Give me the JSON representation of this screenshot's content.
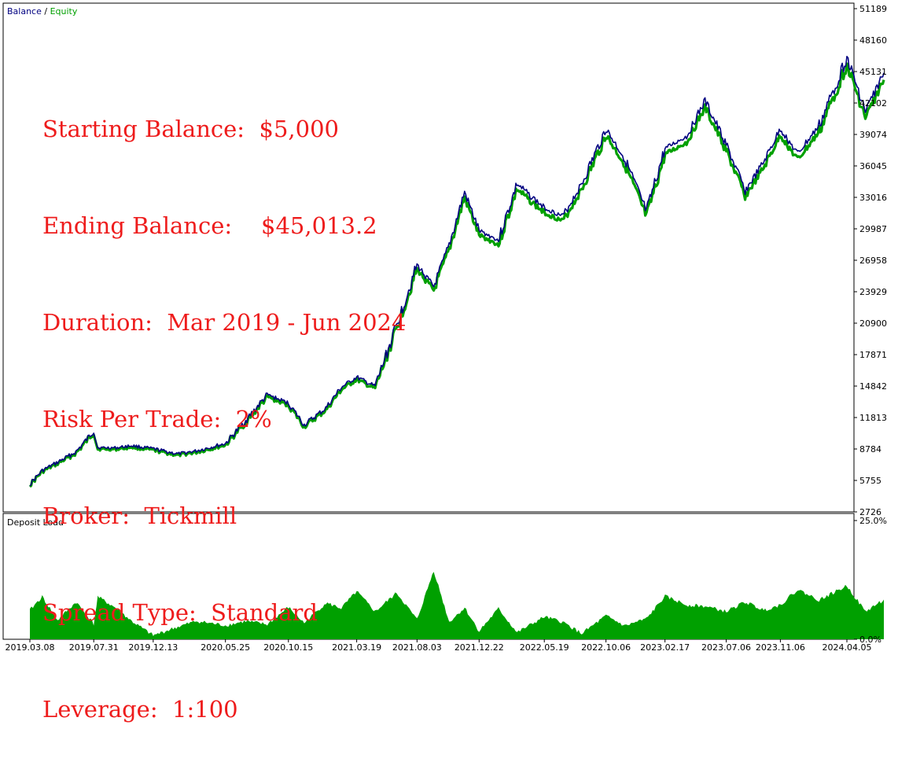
{
  "legend": {
    "balance_label": "Balance",
    "separator": " / ",
    "equity_label": "Equity",
    "balance_color": "#000080",
    "equity_color": "#00a000"
  },
  "stats": [
    "Starting Balance:  $5,000",
    "Ending Balance:    $45,013.2",
    "Duration:  Mar 2019 - Jun 2024",
    "Risk Per Trade:  2%",
    "Broker:  Tickmill",
    "Spread Type:  Standard",
    "Leverage:  1:100"
  ],
  "colors": {
    "balance": "#000080",
    "equity": "#00a000",
    "deposit_load": "#00a000",
    "stats_text": "#ee1c1c"
  },
  "chart_data": [
    {
      "type": "line",
      "title": "",
      "x_tick_labels": [
        "2019.03.08",
        "2019.07.31",
        "2019.12.13",
        "2020.05.25",
        "2020.10.15",
        "2021.03.19",
        "2021.08.03",
        "2021.12.22",
        "2022.05.19",
        "2022.10.06",
        "2023.02.17",
        "2023.07.06",
        "2023.11.06",
        "2024.04.05"
      ],
      "y_tick_labels": [
        "51189",
        "48160",
        "45131",
        "42102",
        "39074",
        "36045",
        "33016",
        "29987",
        "26958",
        "23929",
        "20900",
        "17871",
        "14842",
        "11813",
        "8784",
        "5755",
        "2726"
      ],
      "ylim": [
        2726,
        51189
      ],
      "series": [
        {
          "name": "Balance",
          "x": [
            "2019.03.08",
            "2019.04.05",
            "2019.05.10",
            "2019.06.21",
            "2019.07.31",
            "2019.08.09",
            "2019.09.20",
            "2019.10.25",
            "2019.12.13",
            "2020.02.07",
            "2020.03.20",
            "2020.05.25",
            "2020.07.10",
            "2020.08.28",
            "2020.10.15",
            "2020.11.20",
            "2021.01.08",
            "2021.02.12",
            "2021.03.19",
            "2021.04.30",
            "2021.06.18",
            "2021.08.03",
            "2021.09.10",
            "2021.10.15",
            "2021.11.19",
            "2021.12.22",
            "2022.02.04",
            "2022.03.18",
            "2022.05.19",
            "2022.06.30",
            "2022.08.12",
            "2022.10.06",
            "2022.11.18",
            "2023.01.06",
            "2023.02.17",
            "2023.04.07",
            "2023.05.19",
            "2023.07.06",
            "2023.08.18",
            "2023.09.29",
            "2023.11.06",
            "2023.12.15",
            "2024.02.02",
            "2024.04.05",
            "2024.05.17",
            "2024.06.28"
          ],
          "values": [
            5400,
            6700,
            7500,
            8500,
            10500,
            8900,
            8900,
            9100,
            8800,
            8300,
            8600,
            9300,
            11500,
            14000,
            13200,
            11100,
            12700,
            14700,
            15700,
            14800,
            20700,
            26500,
            24400,
            28400,
            33500,
            29800,
            28900,
            34300,
            32000,
            31200,
            34300,
            39600,
            36700,
            31600,
            37700,
            38900,
            42300,
            38100,
            33600,
            36400,
            39600,
            37200,
            39900,
            46500,
            41300,
            45000
          ]
        },
        {
          "name": "Equity",
          "x": [
            "2019.03.08",
            "2019.07.31",
            "2019.12.13",
            "2020.05.25",
            "2020.10.15",
            "2021.03.19",
            "2021.08.03",
            "2021.12.22",
            "2022.05.19",
            "2022.10.06",
            "2023.02.17",
            "2023.07.06",
            "2023.11.06",
            "2024.04.05",
            "2024.06.28"
          ],
          "values": [
            5300,
            10300,
            8700,
            9100,
            13000,
            15500,
            26200,
            33300,
            31000,
            39300,
            37500,
            33300,
            39300,
            46200,
            44800
          ]
        }
      ]
    },
    {
      "type": "area",
      "title": "Deposit Load",
      "y_tick_labels": [
        "25.0%",
        "0.0%"
      ],
      "ylim": [
        0,
        25
      ],
      "series": [
        {
          "name": "",
          "x": [
            "2019.03.08",
            "2019.04.05",
            "2019.05.10",
            "2019.06.21",
            "2019.07.31",
            "2019.08.09",
            "2019.09.20",
            "2019.10.25",
            "2019.12.13",
            "2020.02.07",
            "2020.03.20",
            "2020.05.25",
            "2020.07.10",
            "2020.08.28",
            "2020.10.15",
            "2020.11.20",
            "2021.01.08",
            "2021.02.12",
            "2021.03.19",
            "2021.04.30",
            "2021.06.18",
            "2021.08.03",
            "2021.09.10",
            "2021.10.15",
            "2021.11.19",
            "2021.12.22",
            "2022.02.04",
            "2022.03.18",
            "2022.05.19",
            "2022.06.30",
            "2022.08.12",
            "2022.10.06",
            "2022.11.18",
            "2023.01.06",
            "2023.02.17",
            "2023.04.07",
            "2023.05.19",
            "2023.07.06",
            "2023.08.18",
            "2023.09.29",
            "2023.11.06",
            "2023.12.15",
            "2024.02.02",
            "2024.04.05",
            "2024.05.17",
            "2024.06.28"
          ],
          "values": [
            6.1,
            8.9,
            4.0,
            7.8,
            3.2,
            8.9,
            6.5,
            3.8,
            0.8,
            2.6,
            3.8,
            2.9,
            3.8,
            3.1,
            6.7,
            3.4,
            7.6,
            6.5,
            10.0,
            5.8,
            9.7,
            4.1,
            14.4,
            3.6,
            6.6,
            1.7,
            6.4,
            1.4,
            4.7,
            3.6,
            1.2,
            4.9,
            2.8,
            4.3,
            9.0,
            7.2,
            6.9,
            5.8,
            7.8,
            6.1,
            7.2,
            10.4,
            8.2,
            11.2,
            5.8,
            8.3
          ]
        }
      ]
    }
  ]
}
